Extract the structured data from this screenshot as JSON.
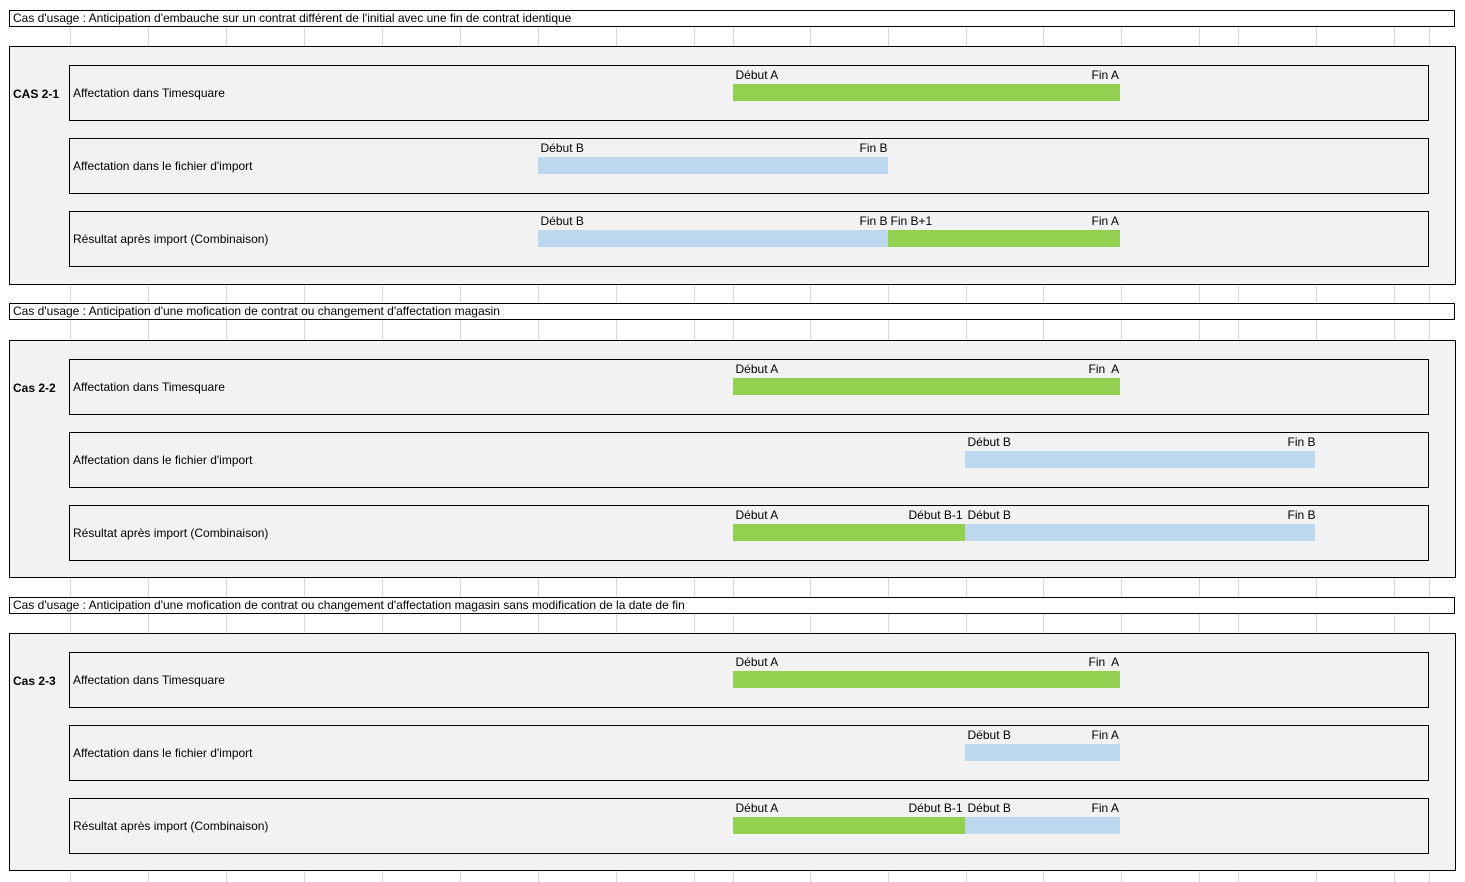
{
  "colors": {
    "timesquare": "#92d050",
    "import_file": "#bdd7ee",
    "panel_bg": "#f2f2f2"
  },
  "sections": [
    {
      "title": "Cas d'usage : Anticipation d'embauche sur un contrat différent de l'initial avec une fin de contrat identique",
      "case_label": "CAS 2-1",
      "rows": [
        {
          "label": "Affectation dans Timesquare",
          "bars": [
            {
              "color": "green",
              "start": 733,
              "end": 1120
            }
          ],
          "marks": [
            {
              "text": "Début A",
              "x": 736
            },
            {
              "text": "Fin A",
              "x": 1092
            }
          ]
        },
        {
          "label": "Affectation dans le fichier d'import",
          "bars": [
            {
              "color": "blue",
              "start": 538,
              "end": 888
            }
          ],
          "marks": [
            {
              "text": "Début B",
              "x": 541
            },
            {
              "text": "Fin B",
              "x": 860
            }
          ]
        },
        {
          "label": "Résultat après import (Combinaison)",
          "bars": [
            {
              "color": "blue",
              "start": 538,
              "end": 888
            },
            {
              "color": "green",
              "start": 888,
              "end": 1120
            }
          ],
          "marks": [
            {
              "text": "Début B",
              "x": 541
            },
            {
              "text": "Fin B",
              "x": 860
            },
            {
              "text": "Fin B+1",
              "x": 891
            },
            {
              "text": "Fin A",
              "x": 1092
            }
          ]
        }
      ]
    },
    {
      "title": "Cas d'usage : Anticipation d'une mofication de contrat ou changement d'affectation magasin",
      "case_label": "Cas 2-2",
      "rows": [
        {
          "label": "Affectation dans Timesquare",
          "bars": [
            {
              "color": "green",
              "start": 733,
              "end": 1120
            }
          ],
          "marks": [
            {
              "text": "Début A",
              "x": 736
            },
            {
              "text": "Fin  A",
              "x": 1089
            }
          ]
        },
        {
          "label": "Affectation dans le fichier d'import",
          "bars": [
            {
              "color": "blue",
              "start": 965,
              "end": 1315
            }
          ],
          "marks": [
            {
              "text": "Début B",
              "x": 968
            },
            {
              "text": "Fin B",
              "x": 1288
            }
          ]
        },
        {
          "label": "Résultat après import (Combinaison)",
          "bars": [
            {
              "color": "green",
              "start": 733,
              "end": 965
            },
            {
              "color": "blue",
              "start": 965,
              "end": 1315
            }
          ],
          "marks": [
            {
              "text": "Début A",
              "x": 736
            },
            {
              "text": "Début B-1",
              "x": 909
            },
            {
              "text": "Début B",
              "x": 968
            },
            {
              "text": "Fin B",
              "x": 1288
            }
          ]
        }
      ]
    },
    {
      "title": "Cas d'usage : Anticipation d'une mofication de contrat ou changement d'affectation magasin sans modification de la date de fin",
      "case_label": "Cas 2-3",
      "rows": [
        {
          "label": "Affectation dans Timesquare",
          "bars": [
            {
              "color": "green",
              "start": 733,
              "end": 1120
            }
          ],
          "marks": [
            {
              "text": "Début A",
              "x": 736
            },
            {
              "text": "Fin  A",
              "x": 1089
            }
          ]
        },
        {
          "label": "Affectation dans le fichier d'import",
          "bars": [
            {
              "color": "blue",
              "start": 965,
              "end": 1120
            }
          ],
          "marks": [
            {
              "text": "Début B",
              "x": 968
            },
            {
              "text": "Fin A",
              "x": 1092
            }
          ]
        },
        {
          "label": "Résultat après import (Combinaison)",
          "bars": [
            {
              "color": "green",
              "start": 733,
              "end": 965
            },
            {
              "color": "blue",
              "start": 965,
              "end": 1120
            }
          ],
          "marks": [
            {
              "text": "Début A",
              "x": 736
            },
            {
              "text": "Début B-1",
              "x": 909
            },
            {
              "text": "Début B",
              "x": 968
            },
            {
              "text": "Fin A",
              "x": 1092
            }
          ]
        }
      ]
    }
  ]
}
